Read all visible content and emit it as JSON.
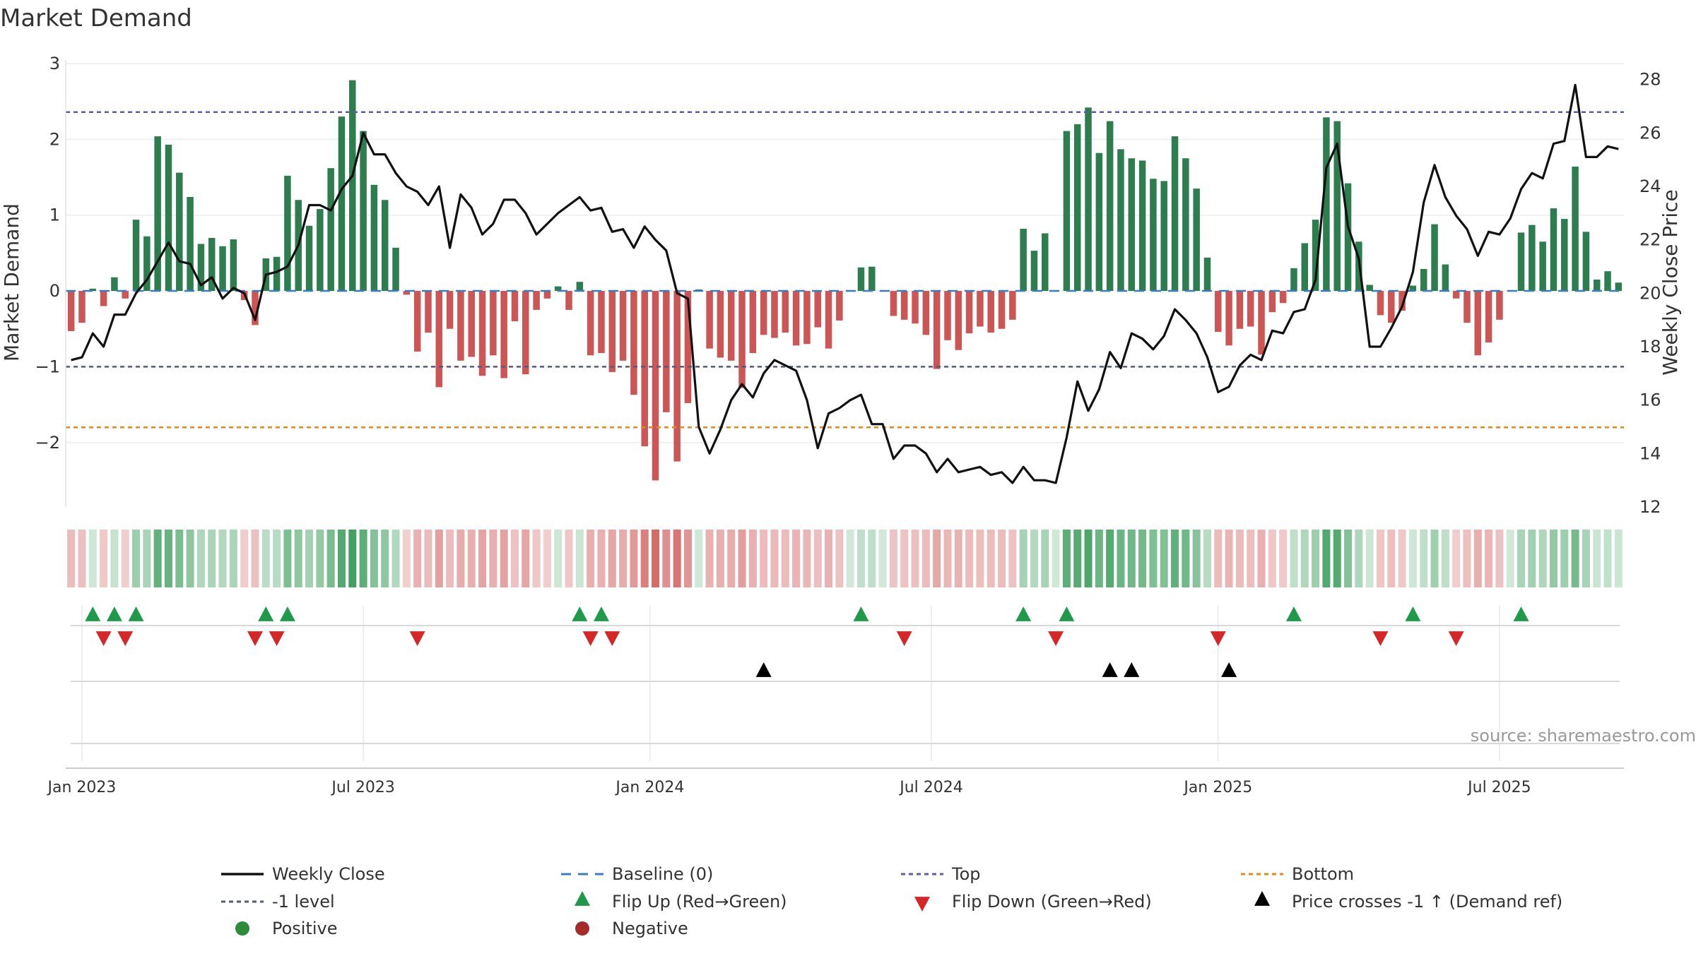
{
  "chart_data": {
    "type": "bar+line",
    "title": "Market Demand",
    "ylabel": "Market Demand",
    "y2label": "Weekly Close Price",
    "source": "source: sharemaestro.com",
    "ylim": [
      -2.85,
      3.0
    ],
    "y2lim": [
      12,
      28.6
    ],
    "yticks": [
      3,
      2,
      1,
      0,
      -1,
      -2
    ],
    "ytick_labels": [
      "3",
      "2",
      "1",
      "0",
      "−1",
      "−2"
    ],
    "y2ticks": [
      28,
      26,
      24,
      22,
      20,
      18,
      16,
      14,
      12
    ],
    "xticks": [
      {
        "label": "Jan 2023",
        "index": 1
      },
      {
        "label": "Jul 2023",
        "index": 27
      },
      {
        "label": "Jan 2024",
        "index": 53.5
      },
      {
        "label": "Jul 2024",
        "index": 79.5
      },
      {
        "label": "Jan 2025",
        "index": 106
      },
      {
        "label": "Jul 2025",
        "index": 132
      }
    ],
    "levels": {
      "top": 2.36,
      "minus_one": -1.0,
      "bottom": -1.8,
      "baseline": 0
    },
    "colors": {
      "positive": "#2e7d4f",
      "negative": "#cc5555",
      "price": "#111111",
      "top": "#5b5ea6",
      "bottom": "#e08a1e",
      "minus_one": "#555a7a",
      "baseline": "#3a7dbf",
      "flip_up": "#1f9a4a",
      "flip_down": "#d62728",
      "cross": "#000000"
    },
    "demand": [
      -0.53,
      -0.42,
      0.03,
      -0.2,
      0.18,
      -0.1,
      0.94,
      0.72,
      2.04,
      1.93,
      1.56,
      1.24,
      0.62,
      0.7,
      0.59,
      0.68,
      -0.12,
      -0.45,
      0.43,
      0.45,
      1.52,
      1.2,
      0.86,
      1.08,
      1.62,
      2.3,
      2.78,
      2.11,
      1.4,
      1.2,
      0.57,
      -0.05,
      -0.8,
      -0.55,
      -1.27,
      -0.5,
      -0.92,
      -0.87,
      -1.12,
      -0.85,
      -1.15,
      -0.4,
      -1.1,
      -0.25,
      -0.1,
      0.06,
      -0.25,
      0.12,
      -0.85,
      -0.82,
      -1.07,
      -0.92,
      -1.37,
      -2.05,
      -2.5,
      -1.6,
      -2.25,
      -1.48,
      0.02,
      -0.76,
      -0.88,
      -0.92,
      -1.28,
      -0.82,
      -0.58,
      -0.62,
      -0.55,
      -0.72,
      -0.7,
      -0.48,
      -0.76,
      -0.39,
      0.0,
      0.31,
      0.32,
      0.0,
      -0.33,
      -0.38,
      -0.43,
      -0.58,
      -1.03,
      -0.65,
      -0.78,
      -0.56,
      -0.47,
      -0.55,
      -0.5,
      -0.38,
      0.82,
      0.53,
      0.76,
      0.0,
      2.11,
      2.2,
      2.42,
      1.82,
      2.24,
      1.87,
      1.75,
      1.72,
      1.48,
      1.45,
      2.04,
      1.75,
      1.35,
      0.44,
      -0.54,
      -0.72,
      -0.5,
      -0.47,
      -0.84,
      -0.28,
      -0.16,
      0.3,
      0.63,
      0.94,
      2.29,
      2.24,
      1.42,
      0.65,
      0.08,
      -0.32,
      -0.42,
      -0.26,
      0.07,
      0.29,
      0.88,
      0.35,
      -0.1,
      -0.42,
      -0.85,
      -0.68,
      -0.38,
      0.0,
      0.77,
      0.87,
      0.65,
      1.09,
      0.95,
      1.64,
      0.78,
      0.15,
      0.26,
      0.11
    ],
    "price": [
      17.5,
      17.6,
      18.5,
      18.0,
      19.2,
      19.2,
      20.0,
      20.5,
      21.2,
      21.9,
      21.2,
      21.1,
      20.3,
      20.6,
      19.8,
      20.2,
      20.0,
      19.0,
      20.7,
      20.8,
      21.0,
      21.8,
      23.3,
      23.3,
      23.1,
      23.9,
      24.4,
      26.0,
      25.2,
      25.2,
      24.5,
      24.0,
      23.8,
      23.3,
      24.0,
      21.7,
      23.7,
      23.2,
      22.2,
      22.6,
      23.5,
      23.5,
      23.0,
      22.2,
      22.6,
      23.0,
      23.3,
      23.6,
      23.1,
      23.2,
      22.3,
      22.4,
      21.7,
      22.5,
      22.0,
      21.6,
      20.0,
      19.8,
      15.0,
      14.0,
      14.9,
      16.0,
      16.6,
      16.1,
      17.0,
      17.5,
      17.3,
      17.1,
      16.0,
      14.2,
      15.5,
      15.7,
      16.0,
      16.2,
      15.1,
      15.1,
      13.8,
      14.3,
      14.3,
      14.0,
      13.3,
      13.8,
      13.3,
      13.4,
      13.5,
      13.2,
      13.3,
      12.9,
      13.5,
      13.0,
      13.0,
      12.9,
      14.6,
      16.7,
      15.6,
      16.4,
      17.8,
      17.2,
      18.5,
      18.3,
      17.9,
      18.4,
      19.4,
      19.0,
      18.5,
      17.6,
      16.3,
      16.5,
      17.3,
      17.7,
      17.5,
      18.6,
      18.5,
      19.3,
      19.4,
      20.5,
      24.7,
      25.6,
      22.5,
      21.3,
      18.0,
      18.0,
      18.7,
      19.5,
      20.8,
      23.4,
      24.8,
      23.6,
      22.9,
      22.4,
      21.4,
      22.3,
      22.2,
      22.8,
      23.9,
      24.5,
      24.3,
      25.6,
      25.7,
      27.8,
      25.1,
      25.1,
      25.5,
      25.4
    ],
    "flip_up_idx": [
      2,
      4,
      6,
      18,
      20,
      47,
      49,
      73,
      88,
      92,
      113,
      124,
      134
    ],
    "flip_down_idx": [
      3,
      5,
      17,
      19,
      32,
      48,
      50,
      77,
      91,
      106,
      121,
      128
    ],
    "cross_up_idx": [
      64,
      96,
      98,
      107
    ],
    "legend": {
      "weekly_close": "Weekly Close",
      "baseline": "Baseline (0)",
      "top": "Top",
      "bottom": "Bottom",
      "minus_one": "-1 level",
      "flip_up": "Flip Up (Red→Green)",
      "flip_down": "Flip Down (Green→Red)",
      "cross": "Price crosses -1 ↑ (Demand ref)",
      "positive": "Positive",
      "negative": "Negative"
    }
  }
}
